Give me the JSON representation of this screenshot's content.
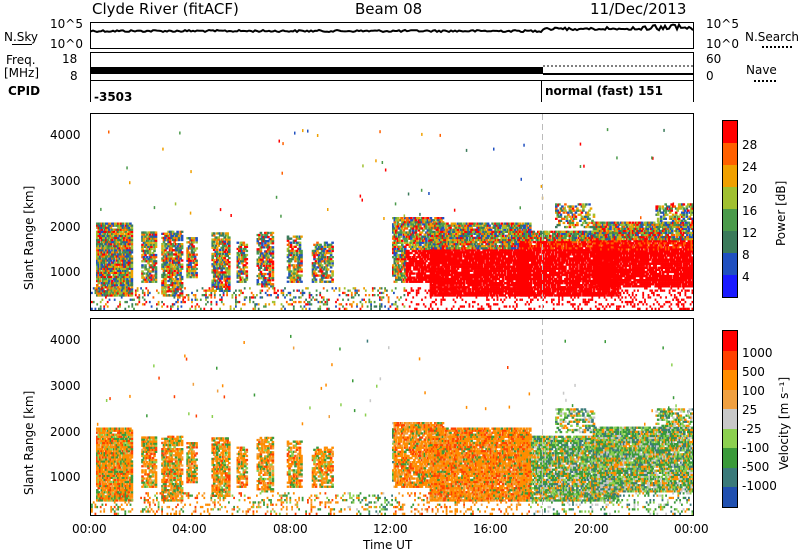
{
  "header": {
    "station": "Clyde River (fitACF)",
    "beam": "Beam 08",
    "date": "11/Dec/2013"
  },
  "top_panels": {
    "nsky_label": "N.Sky",
    "nsky_ticks": [
      "10^5",
      "10^0"
    ],
    "nsearch_label": "N.Search",
    "nsearch_ticks": [
      "10^5",
      "10^0"
    ],
    "freq_label_1": "Freq.",
    "freq_label_2": "[MHz]",
    "freq_ticks": [
      "18",
      "8"
    ],
    "nave_label": "Nave",
    "nave_ticks": [
      "60",
      "0"
    ],
    "cpid_label": "CPID",
    "cpid_value_1": "-3503",
    "cpid_value_2": "normal (fast) 151"
  },
  "colors": {
    "power_scale": [
      "#1a1aff",
      "#2050c0",
      "#3a7a5a",
      "#4a9a4a",
      "#a0c030",
      "#f0a000",
      "#ff6000",
      "#ff0000"
    ],
    "velocity_scale": [
      "#ff0000",
      "#ff4000",
      "#ff8c00",
      "#f0a040",
      "#c8c8c8",
      "#8cd050",
      "#3a9a3a",
      "#3a7a7a",
      "#2050b0"
    ]
  },
  "chart_data": [
    {
      "type": "heatmap",
      "panel": "power",
      "ylabel": "Slant Range [km]",
      "yticks": [
        "1000",
        "2000",
        "3000",
        "4000"
      ],
      "ylim": [
        200,
        4500
      ],
      "xlim_hours": [
        0,
        24
      ],
      "colorbar_label": "Power [dB]",
      "colorbar_ticks": [
        "4",
        "8",
        "12",
        "16",
        "20",
        "24",
        "28"
      ],
      "colorbar_range": [
        0,
        32
      ]
    },
    {
      "type": "heatmap",
      "panel": "velocity",
      "ylabel": "Slant Range [km]",
      "yticks": [
        "1000",
        "2000",
        "3000",
        "4000"
      ],
      "ylim": [
        200,
        4500
      ],
      "xlim_hours": [
        0,
        24
      ],
      "colorbar_label": "Velocity [m s⁻¹]",
      "colorbar_ticks": [
        "1000",
        "500",
        "100",
        "25",
        "-25",
        "-100",
        "-500",
        "-1000"
      ]
    }
  ],
  "xaxis": {
    "ticks": [
      "00:00",
      "04:00",
      "08:00",
      "12:00",
      "16:00",
      "20:00",
      "00:00"
    ],
    "label": "Time UT"
  }
}
